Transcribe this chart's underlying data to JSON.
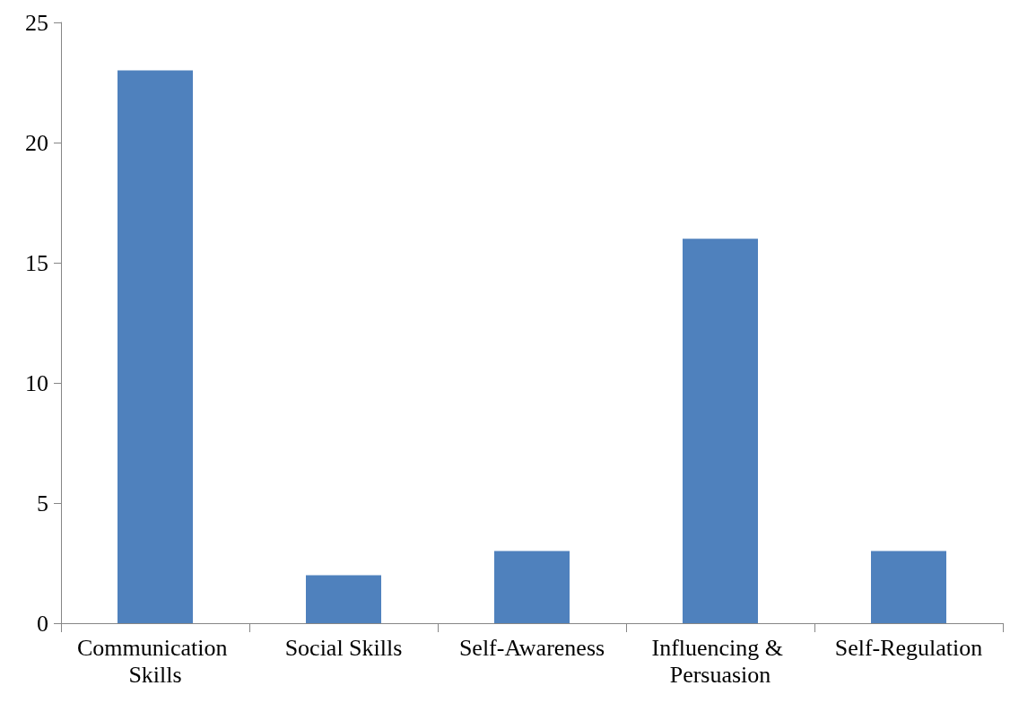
{
  "chart_data": {
    "type": "bar",
    "categories": [
      "Communication Skills",
      "Social Skills",
      "Self-Awareness",
      "Influencing & Persuasion",
      "Self-Regulation"
    ],
    "values": [
      23,
      2,
      3,
      16,
      3
    ],
    "color": "#4f81bd",
    "ylim": [
      0,
      25
    ],
    "yticks": [
      0,
      5,
      10,
      15,
      20,
      25
    ],
    "grid": false
  }
}
